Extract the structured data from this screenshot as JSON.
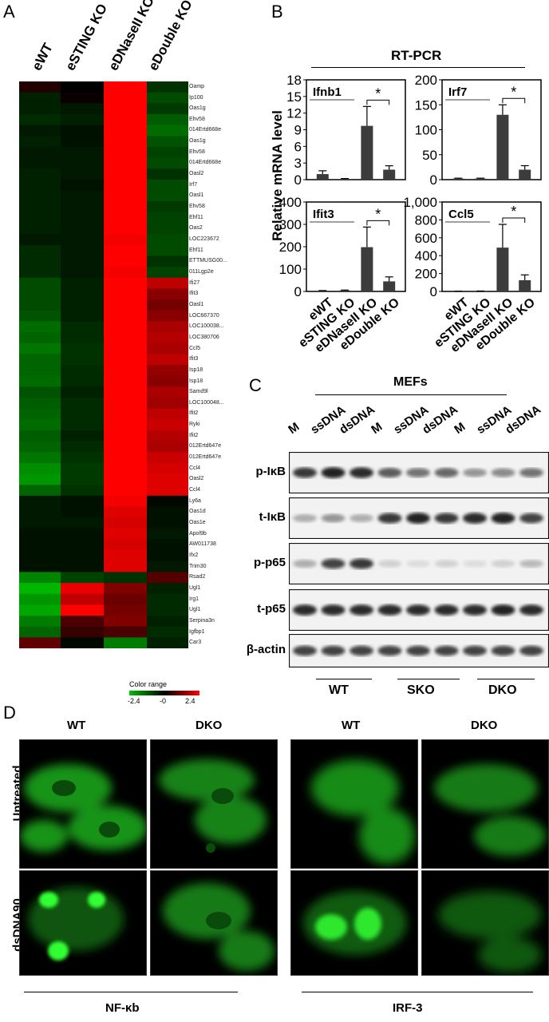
{
  "panel_a": {
    "label": "A",
    "columns": [
      "eWT",
      "eSTING KO",
      "eDNaseII KO",
      "eDouble KO"
    ],
    "genes": [
      "Oamp",
      "Ip100",
      "Oas1g",
      "Ehv58",
      "014Ertd668e",
      "Oas1g",
      "Ehv58",
      "014Ertd668e",
      "Oasl2",
      "Irf7",
      "Oasl1",
      "Ehv58",
      "Ehf11",
      "Oas2",
      "LOC223672",
      "Ehf11",
      "ETTMUSG00...",
      "011Lgp2e",
      "Ifi27",
      "Ifit3",
      "Oasl1",
      "LOC667370",
      "LOC100038...",
      "LOC380706",
      "Ccl5",
      "Ifit3",
      "Isp18",
      "Isp18",
      "Samd9l",
      "LOC100048...",
      "Ifit2",
      "Ryki",
      "Ifit2",
      "012Ertd647e",
      "012Ertd647e",
      "Ccl4",
      "Oasl2",
      "Ccl4",
      "Ly6a",
      "Oas1d",
      "Oas1e",
      "Apol9b",
      "AW011738",
      "Ifx2",
      "Trim30",
      "Rsad2",
      "Ugl1",
      "Irg1",
      "Ugl1",
      "Serpina3n",
      "Igfbp1",
      "Car3"
    ],
    "heat_values": [
      [
        0.3,
        0.0,
        2.4,
        -0.6
      ],
      [
        -0.4,
        0.1,
        2.4,
        -0.9
      ],
      [
        -0.4,
        -0.3,
        2.4,
        -0.7
      ],
      [
        -0.5,
        -0.4,
        2.4,
        -1.1
      ],
      [
        -0.3,
        -0.2,
        2.4,
        -1.3
      ],
      [
        -0.4,
        -0.2,
        2.4,
        -1.0
      ],
      [
        -0.3,
        -0.3,
        2.4,
        -0.8
      ],
      [
        -0.3,
        -0.3,
        2.4,
        -0.9
      ],
      [
        -0.4,
        -0.3,
        2.4,
        -0.6
      ],
      [
        -0.4,
        -0.2,
        2.4,
        -0.9
      ],
      [
        -0.4,
        -0.3,
        2.4,
        -0.9
      ],
      [
        -0.4,
        -0.3,
        2.4,
        -0.7
      ],
      [
        -0.4,
        -0.3,
        2.4,
        -0.8
      ],
      [
        -0.4,
        -0.3,
        2.4,
        -0.8
      ],
      [
        -0.3,
        -0.3,
        2.3,
        -0.9
      ],
      [
        -0.5,
        -0.3,
        2.4,
        -0.9
      ],
      [
        -0.5,
        -0.3,
        2.4,
        -0.6
      ],
      [
        -0.5,
        -0.3,
        2.3,
        -0.8
      ],
      [
        -0.9,
        -0.4,
        2.4,
        1.8
      ],
      [
        -0.9,
        -0.4,
        2.4,
        1.3
      ],
      [
        -0.9,
        -0.4,
        2.4,
        1.1
      ],
      [
        -1.0,
        -0.4,
        2.4,
        1.3
      ],
      [
        -1.3,
        -0.5,
        2.4,
        1.6
      ],
      [
        -1.2,
        -0.5,
        2.4,
        1.7
      ],
      [
        -1.4,
        -0.6,
        2.4,
        1.6
      ],
      [
        -1.2,
        -0.6,
        2.4,
        1.8
      ],
      [
        -1.2,
        -0.5,
        2.4,
        1.4
      ],
      [
        -1.3,
        -0.5,
        2.4,
        1.3
      ],
      [
        -1.0,
        -0.4,
        2.4,
        1.6
      ],
      [
        -1.1,
        -0.5,
        2.4,
        1.5
      ],
      [
        -1.2,
        -0.5,
        2.4,
        1.8
      ],
      [
        -1.3,
        -0.5,
        2.4,
        1.9
      ],
      [
        -1.1,
        -0.4,
        2.4,
        1.7
      ],
      [
        -1.2,
        -0.5,
        2.4,
        1.6
      ],
      [
        -1.4,
        -0.6,
        2.4,
        1.9
      ],
      [
        -1.7,
        -0.7,
        2.4,
        2.0
      ],
      [
        -1.8,
        -0.7,
        2.4,
        2.1
      ],
      [
        -1.2,
        -0.6,
        2.4,
        2.1
      ],
      [
        -0.3,
        -0.2,
        2.3,
        -0.1
      ],
      [
        -0.3,
        -0.2,
        2.1,
        -0.2
      ],
      [
        -0.3,
        -0.3,
        2.0,
        -0.2
      ],
      [
        -0.2,
        -0.2,
        2.1,
        -0.3
      ],
      [
        -0.2,
        -0.2,
        2.0,
        -0.2
      ],
      [
        -0.2,
        -0.2,
        2.1,
        -0.2
      ],
      [
        -0.2,
        -0.2,
        2.1,
        -0.3
      ],
      [
        -1.6,
        -0.8,
        -0.6,
        0.8
      ],
      [
        -2.2,
        2.2,
        1.2,
        -0.4
      ],
      [
        -1.8,
        1.8,
        1.0,
        -0.5
      ],
      [
        -2.0,
        2.4,
        1.1,
        -0.5
      ],
      [
        -1.5,
        0.7,
        1.2,
        -0.4
      ],
      [
        -1.2,
        0.5,
        0.7,
        -0.5
      ],
      [
        0.9,
        -0.1,
        -1.5,
        -0.4
      ]
    ],
    "color_range_title": "Color range",
    "color_range_min": "-2.4",
    "color_range_mid": "-0",
    "color_range_max": "2.4"
  },
  "panel_b": {
    "label": "B",
    "title": "RT-PCR",
    "ylabel": "Relative mRNA level",
    "categories": [
      "eWT",
      "eSTING KO",
      "eDNaseII KO",
      "eDouble KO"
    ],
    "chart_data": [
      {
        "type": "bar",
        "name": "Ifnb1",
        "categories": [
          "eWT",
          "eSTING KO",
          "eDNaseII KO",
          "eDouble KO"
        ],
        "values": [
          1.0,
          0.1,
          9.7,
          1.8
        ],
        "errors": [
          0.6,
          0.1,
          3.5,
          0.7
        ],
        "ylim": [
          0,
          18
        ],
        "ticks": [
          "0",
          "3",
          "6",
          "9",
          "12",
          "15",
          "18"
        ],
        "signif": "*"
      },
      {
        "type": "bar",
        "name": "Irf7",
        "categories": [
          "eWT",
          "eSTING KO",
          "eDNaseII KO",
          "eDouble KO"
        ],
        "values": [
          2,
          2,
          130,
          20
        ],
        "errors": [
          1,
          1,
          20,
          8
        ],
        "ylim": [
          0,
          200
        ],
        "ticks": [
          "0",
          "50",
          "100",
          "150",
          "200"
        ],
        "signif": "*"
      },
      {
        "type": "bar",
        "name": "Ifit3",
        "categories": [
          "eWT",
          "eSTING KO",
          "eDNaseII KO",
          "eDouble KO"
        ],
        "values": [
          3,
          4,
          198,
          45
        ],
        "errors": [
          1,
          2,
          90,
          20
        ],
        "ylim": [
          0,
          400
        ],
        "ticks": [
          "0",
          "100",
          "200",
          "300",
          "400"
        ],
        "signif": "*"
      },
      {
        "type": "bar",
        "name": "Ccl5",
        "categories": [
          "eWT",
          "eSTING KO",
          "eDNaseII KO",
          "eDouble KO"
        ],
        "values": [
          2,
          3,
          490,
          125
        ],
        "errors": [
          1,
          2,
          260,
          60
        ],
        "ylim": [
          0,
          1000
        ],
        "ticks": [
          "0",
          "200",
          "400",
          "600",
          "800",
          "1,000"
        ],
        "signif": "*"
      }
    ]
  },
  "panel_c": {
    "label": "C",
    "header": "MEFs",
    "lanes": [
      "M",
      "ssDNA",
      "dsDNA",
      "M",
      "ssDNA",
      "dsDNA",
      "M",
      "ssDNA",
      "dsDNA"
    ],
    "rows": [
      {
        "label": "p-IκB",
        "intensity": [
          0.85,
          0.95,
          0.9,
          0.7,
          0.6,
          0.65,
          0.45,
          0.5,
          0.6
        ]
      },
      {
        "label": "t-IκB",
        "intensity": [
          0.35,
          0.45,
          0.35,
          0.85,
          0.95,
          0.85,
          0.9,
          0.95,
          0.8
        ]
      },
      {
        "label": "p-p65",
        "intensity": [
          0.35,
          0.8,
          0.85,
          0.2,
          0.15,
          0.2,
          0.15,
          0.2,
          0.3
        ]
      },
      {
        "label": "t-p65",
        "intensity": [
          0.9,
          0.9,
          0.9,
          0.9,
          0.9,
          0.9,
          0.9,
          0.95,
          0.9
        ]
      },
      {
        "label": "β-actin",
        "intensity": [
          0.8,
          0.8,
          0.8,
          0.8,
          0.8,
          0.8,
          0.8,
          0.8,
          0.8
        ]
      }
    ],
    "groups": [
      "WT",
      "SKO",
      "DKO"
    ]
  },
  "panel_d": {
    "label": "D",
    "col_heads": [
      "WT",
      "DKO",
      "WT",
      "DKO"
    ],
    "row_labels": [
      "Untreated",
      "dsDNA90"
    ],
    "bottom_labels": [
      "NF-κb",
      "IRF-3"
    ],
    "fluor_color": "#22dd22"
  }
}
